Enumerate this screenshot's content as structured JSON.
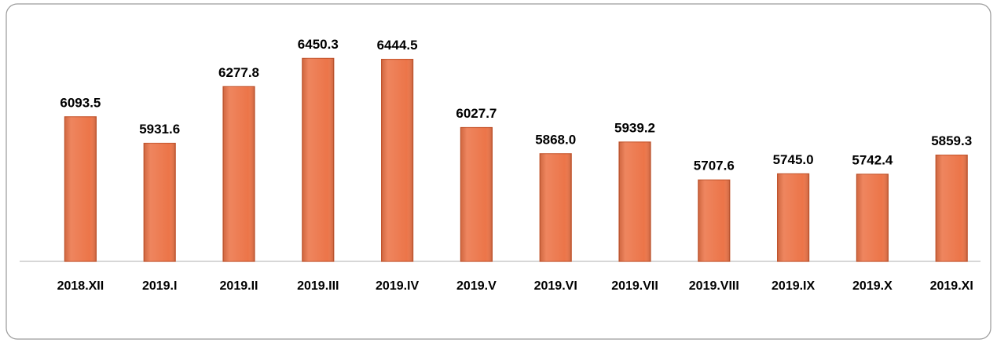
{
  "chart_data": {
    "type": "bar",
    "categories": [
      "2018.XII",
      "2019.I",
      "2019.II",
      "2019.III",
      "2019.IV",
      "2019.V",
      "2019.VI",
      "2019.VII",
      "2019.VIII",
      "2019.IX",
      "2019.X",
      "2019.XI"
    ],
    "values": [
      6093.5,
      5931.6,
      6277.8,
      6450.3,
      6444.5,
      6027.7,
      5868.0,
      5939.2,
      5707.6,
      5745.0,
      5742.4,
      5859.3
    ],
    "value_labels": [
      "6093.5",
      "5931.6",
      "6277.8",
      "6450.3",
      "6444.5",
      "6027.7",
      "5868.0",
      "5939.2",
      "5707.6",
      "5745.0",
      "5742.4",
      "5859.3"
    ],
    "color": "#ec7549",
    "ylim": [
      5210,
      6500
    ]
  }
}
